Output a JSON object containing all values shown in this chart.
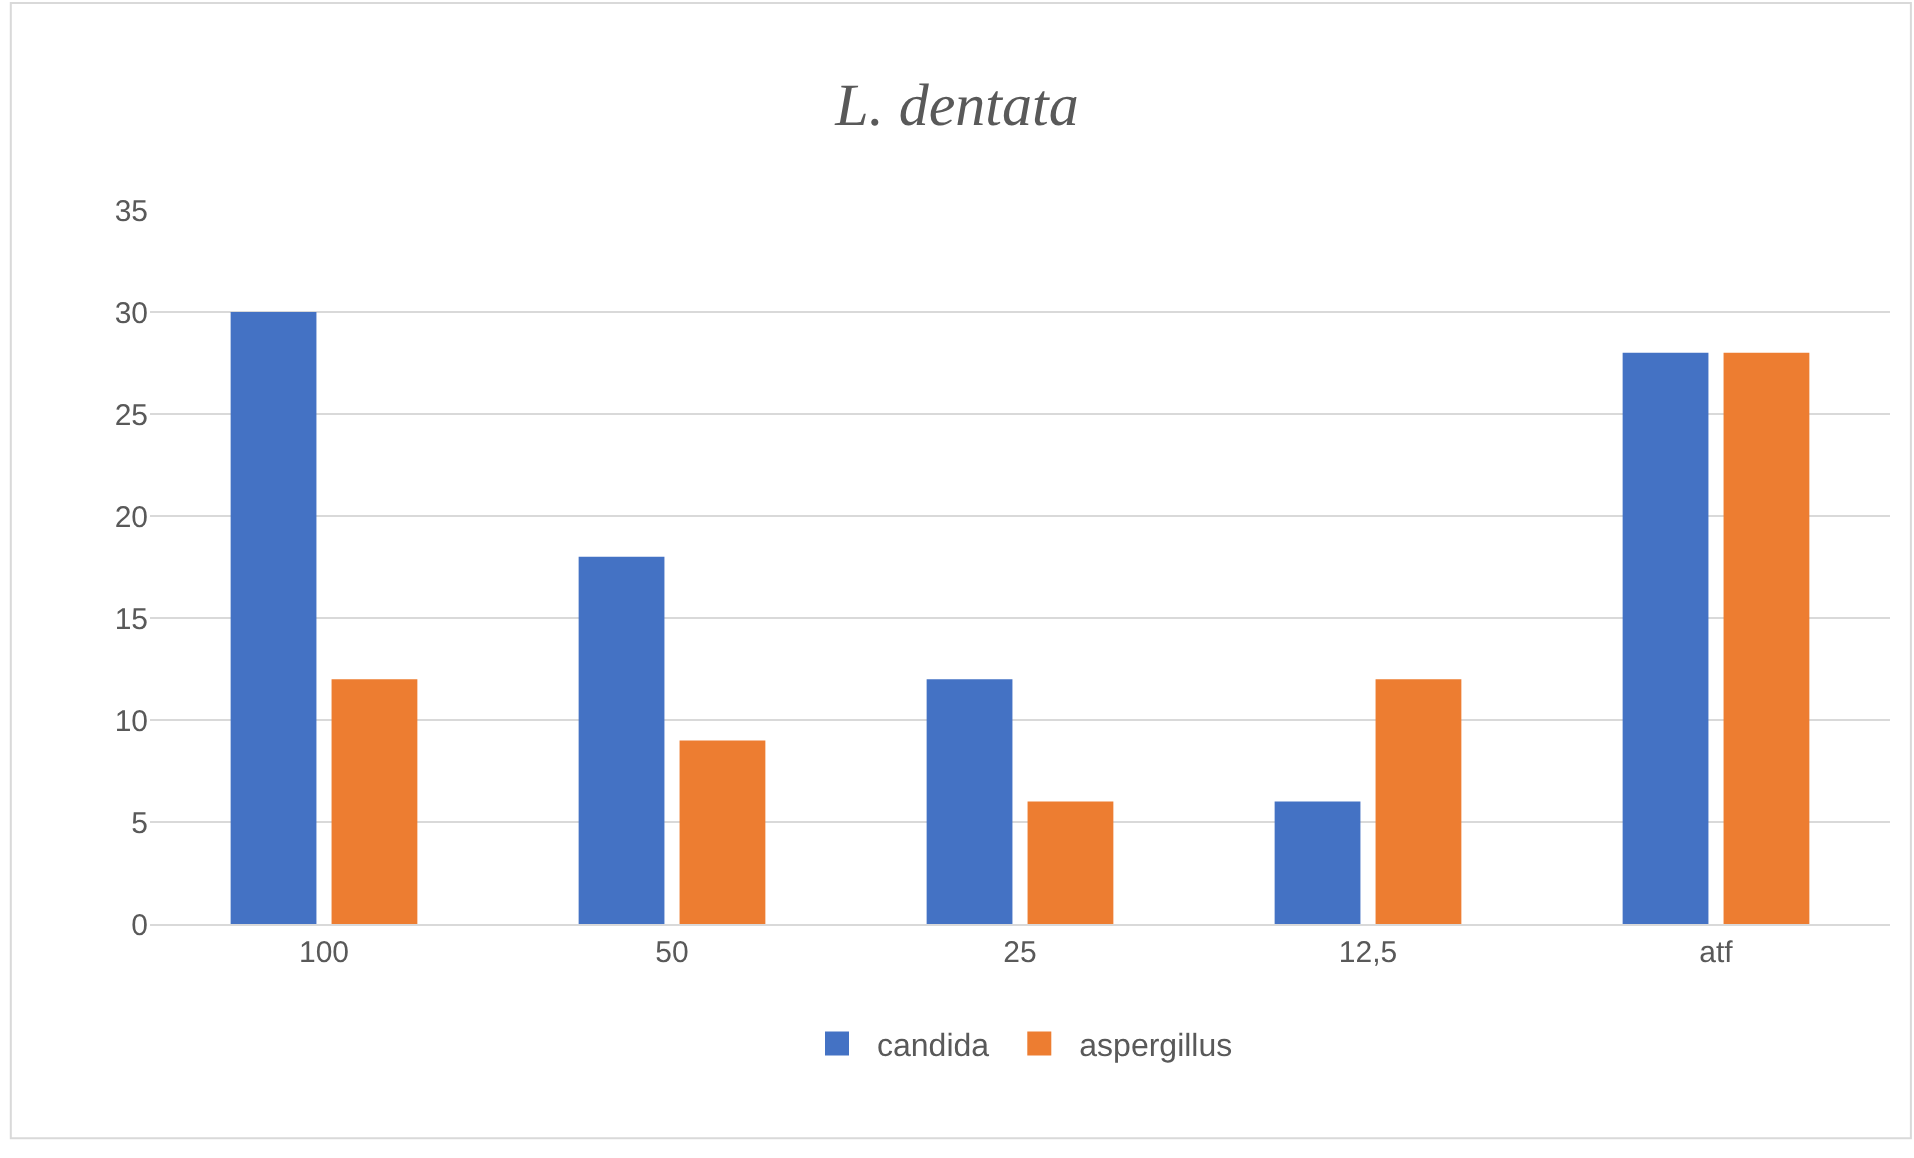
{
  "chart_data": {
    "type": "bar",
    "title": "L. dentata",
    "categories": [
      "100",
      "50",
      "25",
      "12,5",
      "atf"
    ],
    "series": [
      {
        "name": "candida",
        "color": "#4472c4",
        "values": [
          30,
          18,
          12,
          6,
          28
        ]
      },
      {
        "name": "aspergillus",
        "color": "#ed7d31",
        "values": [
          12,
          9,
          6,
          12,
          28
        ]
      }
    ],
    "ylim": [
      0,
      35
    ],
    "yticks": [
      0,
      5,
      10,
      15,
      20,
      25,
      30,
      35
    ],
    "grid": "y",
    "legend": "bottom"
  }
}
